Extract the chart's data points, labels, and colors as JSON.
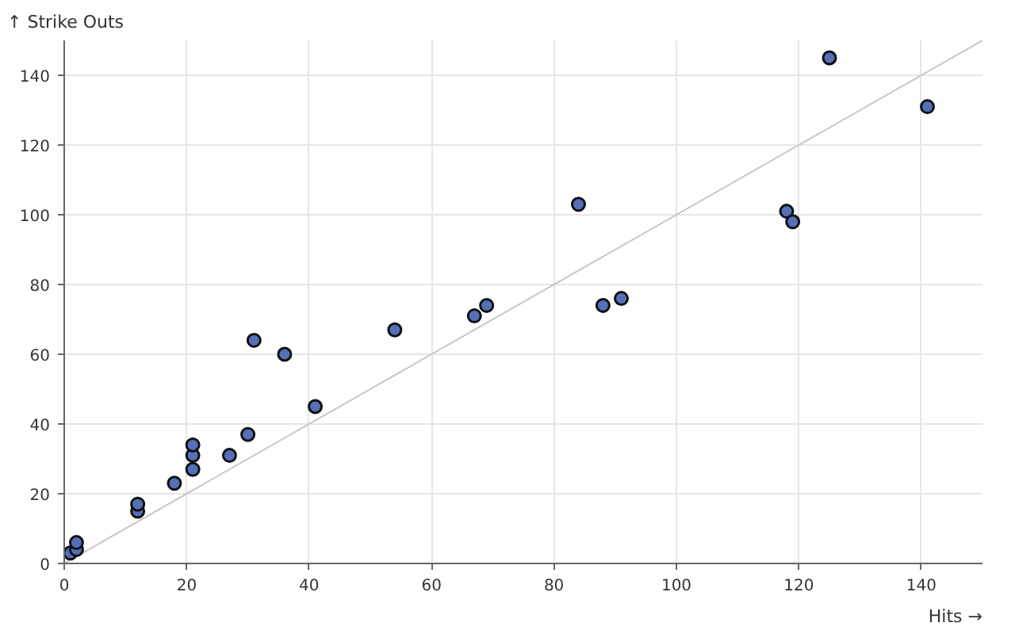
{
  "chart_data": {
    "type": "scatter",
    "xlabel": "Hits →",
    "ylabel": "↑ Strike Outs",
    "xlim": [
      0,
      150
    ],
    "ylim": [
      0,
      150
    ],
    "xticks": [
      0,
      20,
      40,
      60,
      80,
      100,
      120,
      140
    ],
    "yticks": [
      0,
      20,
      40,
      60,
      80,
      100,
      120,
      140
    ],
    "grid": true,
    "series": [
      {
        "marker": "circle",
        "color": "#5470b8",
        "x": [
          1,
          2,
          2,
          12,
          12,
          18,
          21,
          21,
          21,
          27,
          30,
          31,
          36,
          41,
          54,
          67,
          69,
          84,
          88,
          91,
          118,
          119,
          125,
          141
        ],
        "values": [
          3,
          4,
          6,
          15,
          17,
          23,
          27,
          31,
          34,
          31,
          37,
          64,
          60,
          45,
          67,
          71,
          74,
          103,
          74,
          76,
          101,
          98,
          145,
          131
        ]
      },
      {
        "type": "line",
        "color": "#c8c8c8",
        "x": [
          0,
          150
        ],
        "values": [
          0,
          150
        ]
      }
    ]
  }
}
